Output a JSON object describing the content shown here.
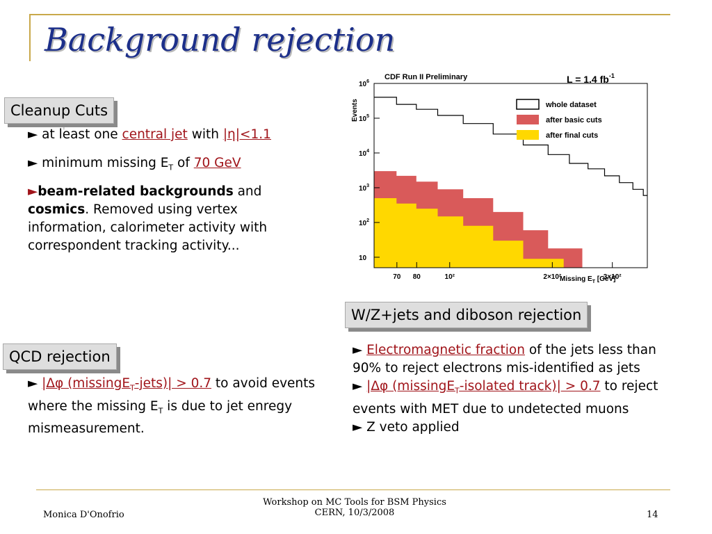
{
  "title": "Background rejection",
  "cleanup": {
    "label": "Cleanup Cuts",
    "b1_pre": "► at least one ",
    "b1_link1": "central jet",
    "b1_mid": " with ",
    "b1_link2": "|η|<1.1",
    "b2_pre": "► minimum missing E",
    "b2_sub": "T",
    "b2_mid": " of ",
    "b2_link": "70 GeV",
    "b3_arrow": "►",
    "b3_bold1": "beam-related backgrounds",
    "b3_and": " and",
    "b3_bold2": "cosmics",
    "b3_rest": ". Removed using vertex information, calorimeter activity with correspondent tracking activity..."
  },
  "qcd": {
    "label": "QCD rejection",
    "arrow": "► ",
    "link_a": "|Δφ (missingE",
    "link_sub": "T",
    "link_b": "-jets)| > 0.7",
    "text1": " to avoid events where the missing E",
    "text_sub": "T",
    "text2": " is due to jet enregy mismeasurement."
  },
  "wz": {
    "label": "W/Z+jets and diboson rejection",
    "b1_arrow": "► ",
    "b1_link": "Electromagnetic fraction",
    "b1_text": " of the jets less than 90% to reject electrons mis-identified as jets",
    "b2_arrow": "► ",
    "b2_link_a": "|Δφ (missingE",
    "b2_link_sub": "T",
    "b2_link_b": "-isolated track)| > 0.7",
    "b2_text": " to reject events with MET due to undetected muons",
    "b3": "► Z veto applied"
  },
  "footer": {
    "author": "Monica D'Onofrio",
    "event1": "Workshop on MC Tools for BSM Physics",
    "event2": "CERN, 10/3/2008",
    "page": "14"
  },
  "chart_data": {
    "type": "histogram",
    "title": "CDF Run II Preliminary",
    "lumi_main": "L = 1.4 fb",
    "lumi_sup": "-1",
    "ylabel": "Events",
    "xlabel_main": "Missing E",
    "xlabel_sub": "T",
    "xlabel_unit": "  [GeV]",
    "y_scale": "log",
    "ylim": [
      5,
      1000000
    ],
    "xlim": [
      60,
      380
    ],
    "y_ticks": [
      {
        "base": "10",
        "exp": "6",
        "value": 1000000
      },
      {
        "base": "10",
        "exp": "5",
        "value": 100000
      },
      {
        "base": "10",
        "exp": "4",
        "value": 10000
      },
      {
        "base": "10",
        "exp": "3",
        "value": 1000
      },
      {
        "base": "10",
        "exp": "2",
        "value": 100
      },
      {
        "base": "10",
        "exp": "",
        "value": 10
      }
    ],
    "x_ticks": [
      {
        "label": "70",
        "value": 70
      },
      {
        "label": "80",
        "value": 80
      },
      {
        "label": "10²",
        "value": 100
      },
      {
        "label": "2×10²",
        "value": 200
      },
      {
        "label": "3×10²",
        "value": 300
      }
    ],
    "legend_position": "top-right",
    "series": [
      {
        "name": "whole dataset",
        "style": "step-line",
        "color": "#000000",
        "x": [
          65,
          75,
          85,
          100,
          120,
          150,
          180,
          210,
          240,
          270,
          300,
          330,
          360,
          380
        ],
        "y": [
          400000,
          250000,
          180000,
          120000,
          70000,
          35000,
          17000,
          9000,
          5000,
          3500,
          2200,
          1400,
          900,
          600
        ]
      },
      {
        "name": "after basic cuts",
        "style": "filled-step",
        "color": "#d95a5a",
        "x": [
          65,
          75,
          85,
          100,
          120,
          150,
          180,
          210
        ],
        "y": [
          3000,
          2200,
          1500,
          900,
          500,
          200,
          60,
          18
        ]
      },
      {
        "name": "after final cuts",
        "style": "filled-step",
        "color": "#ffd800",
        "x": [
          65,
          75,
          85,
          100,
          120,
          150,
          180
        ],
        "y": [
          500,
          350,
          250,
          150,
          80,
          30,
          9
        ]
      }
    ]
  }
}
